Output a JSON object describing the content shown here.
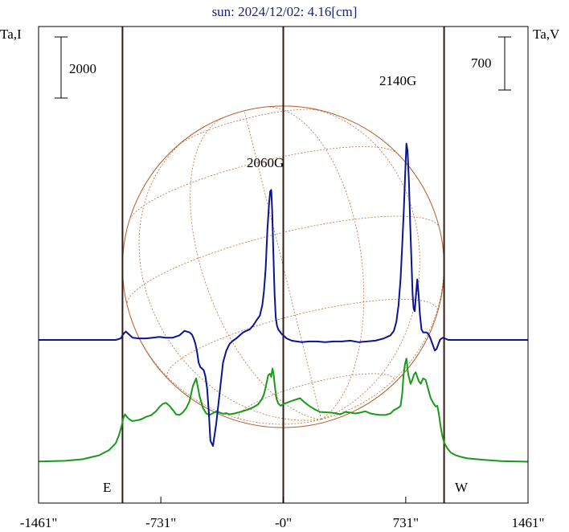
{
  "chart_data": {
    "type": "line",
    "title": "sun: 2024/12/02: 4.16[cm]",
    "left_axis_label": "Ta,I",
    "right_axis_label": "Ta,V",
    "x_ticks": [
      "-1461\"",
      "-731\"",
      "-0\"",
      "731\"",
      "1461\""
    ],
    "x_tick_values": [
      -1461,
      -731,
      0,
      731,
      1461
    ],
    "xlim": [
      -1461,
      1461
    ],
    "limb_positions": [
      -960,
      0,
      960
    ],
    "limb_labels": {
      "east": "E",
      "west": "W"
    },
    "scale_bars": {
      "left": "2000",
      "right": "700"
    },
    "annotations": [
      {
        "text": "2060G",
        "x": -70
      },
      {
        "text": "2140G",
        "x": 731
      }
    ],
    "series": [
      {
        "color": "#1a9a1a",
        "x": [
          -1461,
          -1300,
          -1200,
          -1100,
          -1040,
          -1000,
          -980,
          -965,
          -955,
          -945,
          -935,
          -920,
          -900,
          -880,
          -860,
          -840,
          -820,
          -790,
          -760,
          -740,
          -720,
          -700,
          -680,
          -660,
          -640,
          -620,
          -600,
          -580,
          -560,
          -540,
          -520,
          -500,
          -480,
          -460,
          -440,
          -420,
          -400,
          -380,
          -360,
          -340,
          -320,
          -300,
          -270,
          -240,
          -210,
          -180,
          -150,
          -130,
          -115,
          -100,
          -90,
          -80,
          -72,
          -65,
          -58,
          -50,
          -40,
          -30,
          -15,
          0,
          30,
          60,
          100,
          130,
          160,
          190,
          220,
          250,
          280,
          310,
          340,
          370,
          400,
          430,
          460,
          490,
          520,
          550,
          580,
          610,
          640,
          660,
          675,
          690,
          700,
          710,
          718,
          726,
          735,
          745,
          760,
          770,
          780,
          790,
          800,
          810,
          820,
          835,
          850,
          860,
          870,
          880,
          890,
          900,
          910,
          920,
          930,
          940,
          950,
          960,
          980,
          1000,
          1030,
          1060,
          1100,
          1200,
          1300,
          1461
        ],
        "values": [
          180,
          200,
          250,
          380,
          550,
          780,
          1050,
          1350,
          1600,
          1720,
          1650,
          1560,
          1500,
          1520,
          1540,
          1580,
          1640,
          1690,
          1820,
          1960,
          2060,
          2100,
          2000,
          1870,
          1720,
          1700,
          1780,
          1920,
          2150,
          2650,
          2900,
          2320,
          1930,
          1750,
          1700,
          1760,
          1820,
          1780,
          1740,
          1760,
          1720,
          1740,
          1780,
          1830,
          1880,
          1950,
          2050,
          2200,
          2380,
          2750,
          3000,
          3050,
          2950,
          3220,
          3050,
          2620,
          2220,
          2080,
          2000,
          2060,
          2120,
          2180,
          2250,
          2100,
          1980,
          1880,
          1800,
          1790,
          1780,
          1760,
          1720,
          1800,
          1780,
          1750,
          1780,
          1820,
          1750,
          1720,
          1700,
          1700,
          1750,
          1860,
          1900,
          1950,
          2000,
          2400,
          3000,
          3350,
          3550,
          3050,
          2720,
          2850,
          3020,
          3100,
          2950,
          2800,
          2720,
          2900,
          2850,
          2650,
          2450,
          2250,
          2150,
          2050,
          1980,
          2000,
          1700,
          1300,
          1000,
          800,
          600,
          470,
          380,
          330,
          280,
          230,
          190,
          170
        ]
      },
      {
        "color": "#0a1496",
        "x": [
          -1461,
          -1350,
          -1250,
          -1150,
          -1050,
          -1000,
          -970,
          -960,
          -950,
          -940,
          -920,
          -900,
          -860,
          -820,
          -780,
          -740,
          -700,
          -660,
          -620,
          -590,
          -560,
          -545,
          -535,
          -525,
          -515,
          -505,
          -495,
          -485,
          -475,
          -465,
          -455,
          -445,
          -435,
          -420,
          -400,
          -380,
          -360,
          -340,
          -320,
          -300,
          -280,
          -260,
          -240,
          -220,
          -200,
          -180,
          -160,
          -140,
          -125,
          -115,
          -105,
          -95,
          -85,
          -78,
          -72,
          -66,
          -60,
          -52,
          -45,
          -38,
          -30,
          -20,
          -10,
          0,
          20,
          50,
          80,
          110,
          150,
          200,
          250,
          300,
          350,
          400,
          450,
          500,
          550,
          600,
          640,
          660,
          675,
          688,
          700,
          710,
          720,
          728,
          735,
          742,
          750,
          758,
          766,
          772,
          778,
          785,
          792,
          800,
          808,
          815,
          825,
          835,
          845,
          855,
          865,
          875,
          885,
          895,
          905,
          915,
          925,
          935,
          945,
          955,
          965,
          975,
          985,
          1000,
          1050,
          1100,
          1200,
          1300,
          1461
        ],
        "values": [
          0,
          0,
          0,
          0,
          0,
          0,
          20,
          60,
          90,
          110,
          70,
          30,
          20,
          20,
          30,
          40,
          30,
          30,
          60,
          120,
          100,
          70,
          20,
          -50,
          -160,
          -300,
          -360,
          -380,
          -400,
          -480,
          -640,
          -950,
          -1330,
          -1400,
          -1100,
          -700,
          -300,
          -140,
          -50,
          -10,
          20,
          60,
          100,
          120,
          140,
          190,
          260,
          320,
          460,
          650,
          950,
          1450,
          1800,
          1960,
          1980,
          1700,
          1200,
          600,
          300,
          190,
          140,
          110,
          80,
          60,
          20,
          -10,
          -20,
          -30,
          -20,
          -20,
          -30,
          -20,
          -20,
          -10,
          -30,
          -20,
          -10,
          20,
          60,
          120,
          240,
          460,
          800,
          1250,
          1750,
          2200,
          2590,
          2500,
          2100,
          1500,
          1000,
          600,
          420,
          380,
          600,
          800,
          600,
          350,
          140,
          100,
          100,
          100,
          80,
          40,
          -20,
          -80,
          -140,
          -120,
          -60,
          0,
          20,
          30,
          20,
          10,
          0,
          0,
          0,
          0,
          0,
          0,
          0
        ]
      }
    ]
  }
}
